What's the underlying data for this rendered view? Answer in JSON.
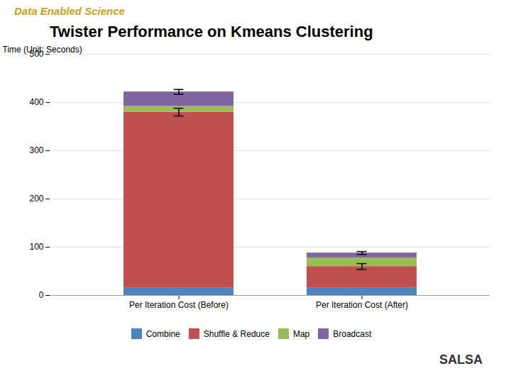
{
  "chart_data": {
    "type": "bar",
    "stacked": true,
    "title": "Twister Performance on Kmeans Clustering",
    "ylabel": "Time (Unit: Seconds)",
    "annotations": [
      "Data Enabled Science",
      "SALSA"
    ],
    "categories": [
      "Per Iteration Cost (Before)",
      "Per Iteration Cost (After)"
    ],
    "series": [
      {
        "name": "Combine",
        "color": "#4f81bd",
        "values": [
          15,
          15
        ]
      },
      {
        "name": "Shuffle & Reduce",
        "color": "#c0504d",
        "values": [
          365,
          45
        ],
        "errors": [
          8,
          6
        ]
      },
      {
        "name": "Map",
        "color": "#9bbb59",
        "values": [
          12,
          18
        ]
      },
      {
        "name": "Broadcast",
        "color": "#8064a2",
        "values": [
          30,
          10
        ],
        "errors": [
          5,
          3
        ]
      }
    ],
    "ylim": [
      0,
      500
    ],
    "yticks": [
      0,
      100,
      200,
      300,
      400,
      500
    ],
    "grid": true,
    "legend": "bottom"
  }
}
